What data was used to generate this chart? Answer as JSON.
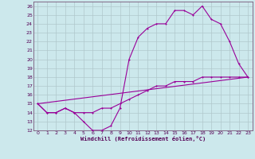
{
  "xlabel": "Windchill (Refroidissement éolien,°C)",
  "bg_color": "#cce8ec",
  "grid_color": "#b0c8cc",
  "line_color": "#990099",
  "xlim": [
    -0.5,
    23.5
  ],
  "ylim": [
    12,
    26.5
  ],
  "xticks": [
    0,
    1,
    2,
    3,
    4,
    5,
    6,
    7,
    8,
    9,
    10,
    11,
    12,
    13,
    14,
    15,
    16,
    17,
    18,
    19,
    20,
    21,
    22,
    23
  ],
  "yticks": [
    12,
    13,
    14,
    15,
    16,
    17,
    18,
    19,
    20,
    21,
    22,
    23,
    24,
    25,
    26
  ],
  "line1_x": [
    0,
    1,
    2,
    3,
    4,
    5,
    6,
    7,
    8,
    9,
    10,
    11,
    12,
    13,
    14,
    15,
    16,
    17,
    18,
    19,
    20,
    21,
    22,
    23
  ],
  "line1_y": [
    15,
    14,
    14,
    14.5,
    14,
    13,
    12,
    12,
    12.5,
    14.5,
    20,
    22.5,
    23.5,
    24,
    24,
    25.5,
    25.5,
    25,
    26,
    24.5,
    24,
    22,
    19.5,
    18
  ],
  "line2_x": [
    0,
    1,
    2,
    3,
    4,
    5,
    6,
    7,
    8,
    9,
    10,
    11,
    12,
    13,
    14,
    15,
    16,
    17,
    18,
    19,
    20,
    21,
    22,
    23
  ],
  "line2_y": [
    15,
    14,
    14,
    14.5,
    14,
    14,
    14,
    14.5,
    14.5,
    15,
    15.5,
    16,
    16.5,
    17,
    17,
    17.5,
    17.5,
    17.5,
    18,
    18,
    18,
    18,
    18,
    18
  ],
  "line3_x": [
    0,
    23
  ],
  "line3_y": [
    15,
    18
  ]
}
